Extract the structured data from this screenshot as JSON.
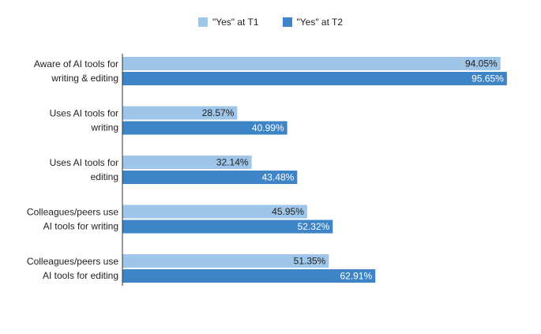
{
  "chart_data": {
    "type": "bar",
    "orientation": "horizontal",
    "title": "",
    "xlabel": "",
    "ylabel": "",
    "xlim": [
      0,
      100
    ],
    "grid": false,
    "legend_position": "top-center",
    "categories": [
      "Aware of AI tools for writing & editing",
      "Uses AI tools for writing",
      "Uses AI tools for editing",
      "Colleagues/peers use AI tools for writing",
      "Colleagues/peers use AI tools for editing"
    ],
    "category_lines": [
      [
        "Aware of AI tools for",
        "writing & editing"
      ],
      [
        "Uses AI tools for",
        "writing"
      ],
      [
        "Uses AI tools for",
        "editing"
      ],
      [
        "Colleagues/peers use",
        "AI tools for writing"
      ],
      [
        "Colleagues/peers use",
        "AI tools for editing"
      ]
    ],
    "series": [
      {
        "name": "\"Yes\" at T1",
        "color": "#9fc5e8",
        "label_color": "#222222",
        "values": [
          94.05,
          28.57,
          32.14,
          45.95,
          51.35
        ],
        "labels": [
          "94.05%",
          "28.57%",
          "32.14%",
          "45.95%",
          "51.35%"
        ]
      },
      {
        "name": "\"Yes\" at T2",
        "color": "#3d85c6",
        "label_color": "#ffffff",
        "values": [
          95.65,
          40.99,
          43.48,
          52.32,
          62.91
        ],
        "labels": [
          "95.65%",
          "40.99%",
          "43.48%",
          "52.32%",
          "62.91%"
        ]
      }
    ]
  }
}
